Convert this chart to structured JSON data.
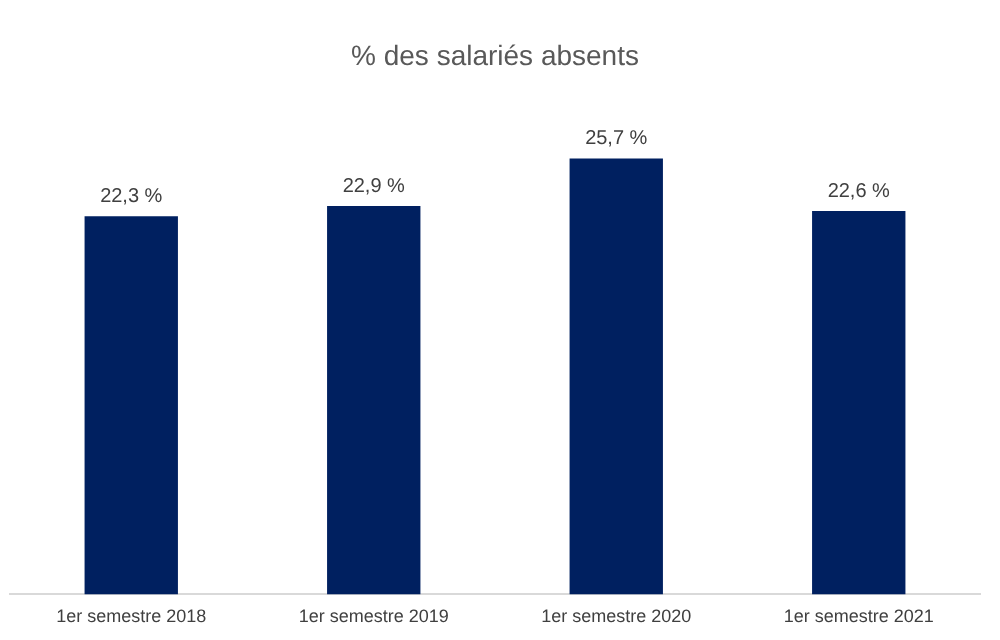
{
  "chart_data": {
    "type": "bar",
    "title": "% des salariés absents",
    "categories": [
      "1er semestre 2018",
      "1er semestre 2019",
      "1er semestre 2020",
      "1er semestre 2021"
    ],
    "values": [
      22.3,
      22.9,
      25.7,
      22.6
    ],
    "value_labels": [
      "22,3 %",
      "22,9 %",
      "25,7 %",
      "22,6 %"
    ],
    "color": "#002060",
    "tick_labels": "x",
    "grid": false,
    "legend": false
  }
}
